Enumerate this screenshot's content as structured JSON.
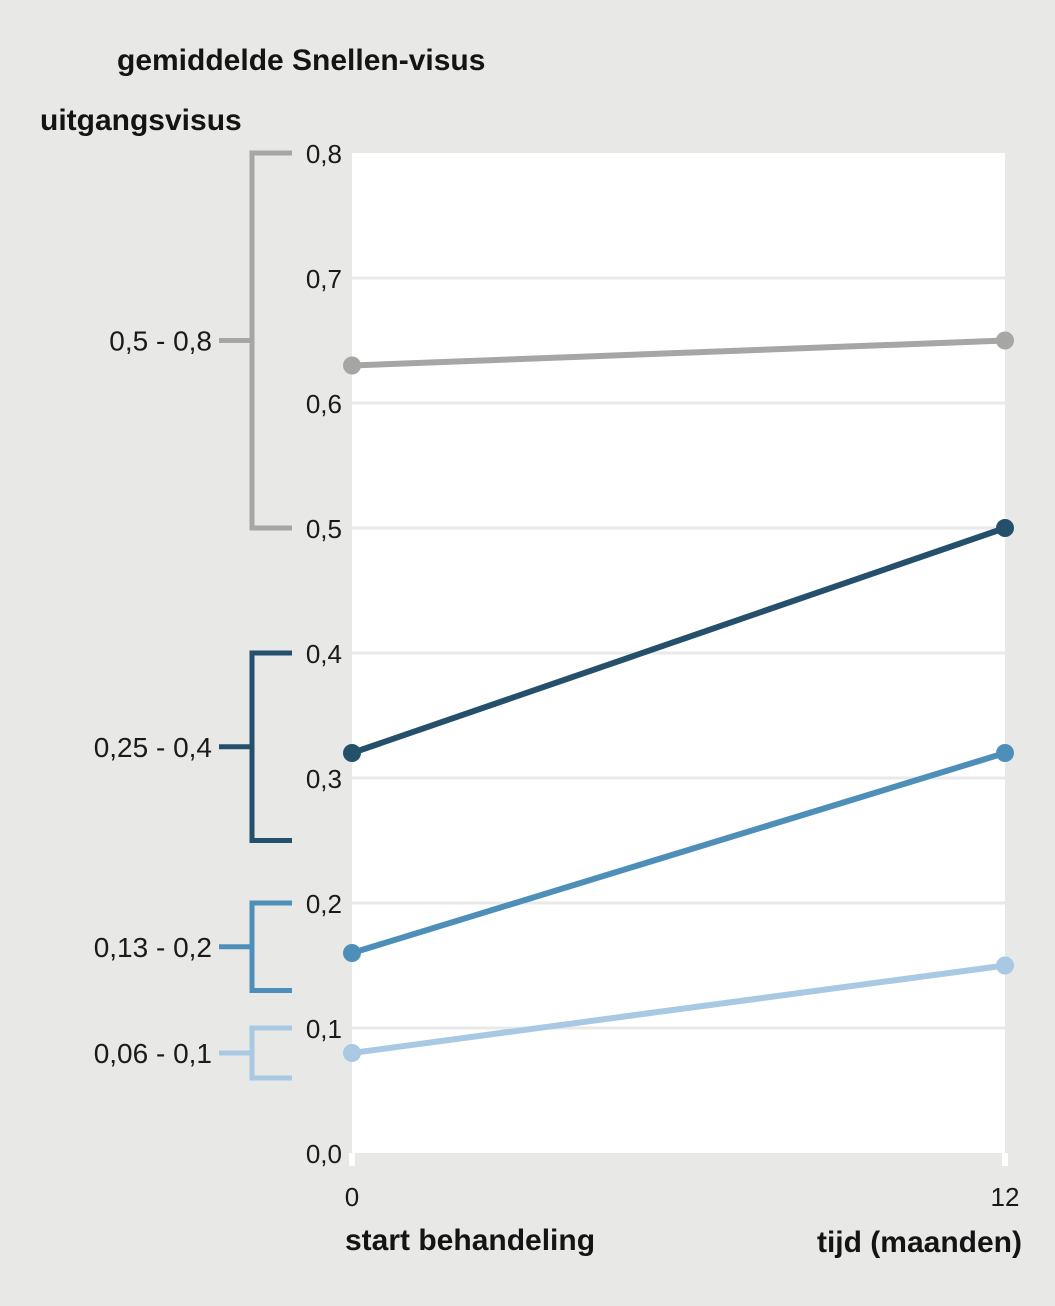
{
  "header": {
    "title": "gemiddelde Snellen-visus",
    "left_axis_title": "uitgangsvisus"
  },
  "chart_data": {
    "type": "line",
    "title": "gemiddelde Snellen-visus",
    "ylabel": "uitgangsvisus",
    "xlabel_left": "start behandeling",
    "xlabel_right": "tijd (maanden)",
    "x": [
      0,
      12
    ],
    "x_ticklabels": [
      "0",
      "12"
    ],
    "ylim": [
      0.0,
      0.8
    ],
    "grid": true,
    "legend_position": "left-brackets",
    "y_ticks": [
      {
        "value": 0.0,
        "label": "0,0"
      },
      {
        "value": 0.1,
        "label": "0,1"
      },
      {
        "value": 0.2,
        "label": "0,2"
      },
      {
        "value": 0.3,
        "label": "0,3"
      },
      {
        "value": 0.4,
        "label": "0,4"
      },
      {
        "value": 0.5,
        "label": "0,5"
      },
      {
        "value": 0.6,
        "label": "0,6"
      },
      {
        "value": 0.7,
        "label": "0,7"
      },
      {
        "value": 0.8,
        "label": "0,8"
      }
    ],
    "series": [
      {
        "name": "0,5 - 0,8",
        "bracket_range": [
          0.5,
          0.8
        ],
        "values": [
          0.63,
          0.65
        ],
        "color": "#a6a6a5"
      },
      {
        "name": "0,25 - 0,4",
        "bracket_range": [
          0.25,
          0.4
        ],
        "values": [
          0.32,
          0.5
        ],
        "color": "#24506b"
      },
      {
        "name": "0,13 - 0,2",
        "bracket_range": [
          0.13,
          0.2
        ],
        "values": [
          0.16,
          0.32
        ],
        "color": "#4e8fba"
      },
      {
        "name": "0,06 - 0,1",
        "bracket_range": [
          0.06,
          0.1
        ],
        "values": [
          0.08,
          0.15
        ],
        "color": "#a9c8e3"
      }
    ],
    "colors": {
      "background": "#e8e8e6",
      "plot_background": "#ffffff",
      "gridline": "#e9e9e8",
      "text": "#1a1a1a"
    }
  }
}
